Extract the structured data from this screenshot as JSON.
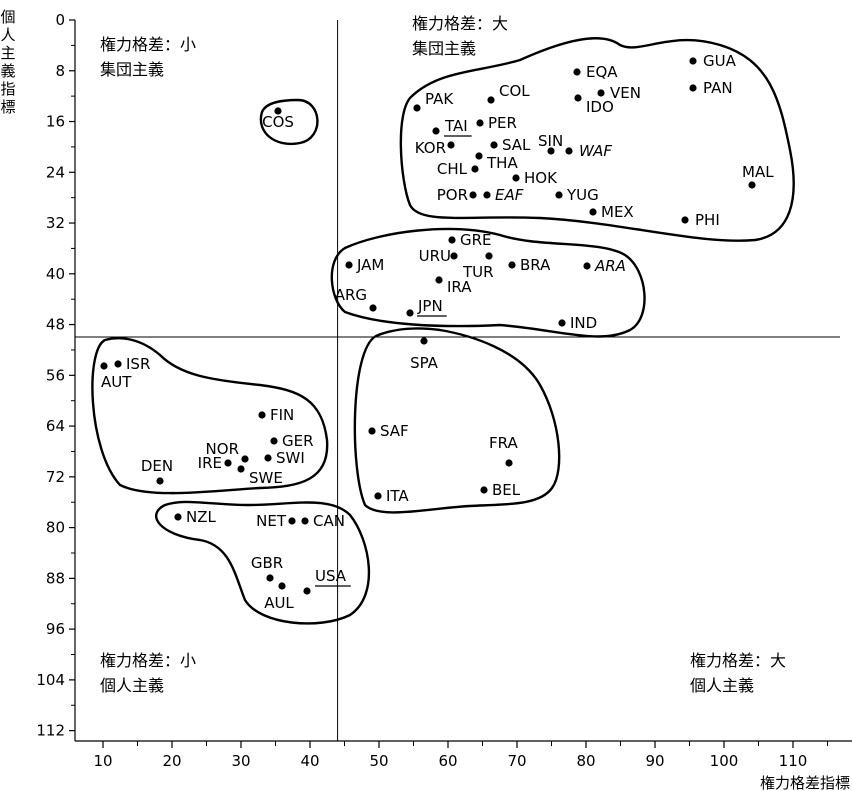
{
  "chart_data": {
    "type": "scatter",
    "title": "",
    "xlabel": "権力格差指標",
    "ylabel": "個人主義指標",
    "xlim": [
      8,
      118
    ],
    "ylim": [
      0,
      112
    ],
    "y_inverted": true,
    "x_ticks": [
      "10",
      "20",
      "30",
      "40",
      "50",
      "60",
      "70",
      "80",
      "90",
      "100",
      "110"
    ],
    "y_ticks": [
      "0",
      "8",
      "16",
      "24",
      "32",
      "40",
      "48",
      "56",
      "64",
      "72",
      "80",
      "88",
      "96",
      "104",
      "112"
    ],
    "reference_lines": {
      "x": 44,
      "y": 50
    },
    "grid": false,
    "quadrant_labels": {
      "top_left": [
        "権力格差：小",
        "集団主義"
      ],
      "top_right": [
        "権力格差：大",
        "集団主義"
      ],
      "bottom_left": [
        "権力格差：小",
        "個人主義"
      ],
      "bottom_right": [
        "権力格差：大",
        "個人主義"
      ]
    },
    "points": [
      {
        "label": "GUA",
        "x": 95,
        "y": 6
      },
      {
        "label": "EQA",
        "x": 78,
        "y": 8
      },
      {
        "label": "PAN",
        "x": 95,
        "y": 11
      },
      {
        "label": "VEN",
        "x": 81,
        "y": 12
      },
      {
        "label": "COL",
        "x": 67,
        "y": 13
      },
      {
        "label": "IDO",
        "x": 78,
        "y": 14
      },
      {
        "label": "PAK",
        "x": 55,
        "y": 14
      },
      {
        "label": "COS",
        "x": 35,
        "y": 15
      },
      {
        "label": "PER",
        "x": 64,
        "y": 16
      },
      {
        "label": "TAI",
        "x": 58,
        "y": 17
      },
      {
        "label": "SAL",
        "x": 66,
        "y": 19
      },
      {
        "label": "KOR",
        "x": 60,
        "y": 18
      },
      {
        "label": "SIN",
        "x": 74,
        "y": 20
      },
      {
        "label": "WAF",
        "x": 77,
        "y": 20
      },
      {
        "label": "THA",
        "x": 64,
        "y": 20
      },
      {
        "label": "CHL",
        "x": 63,
        "y": 23
      },
      {
        "label": "HOK",
        "x": 68,
        "y": 25
      },
      {
        "label": "MAL",
        "x": 104,
        "y": 26
      },
      {
        "label": "POR",
        "x": 63,
        "y": 27
      },
      {
        "label": "EAF",
        "x": 64,
        "y": 27
      },
      {
        "label": "YUG",
        "x": 76,
        "y": 27
      },
      {
        "label": "MEX",
        "x": 81,
        "y": 30
      },
      {
        "label": "PHI",
        "x": 94,
        "y": 32
      },
      {
        "label": "GRE",
        "x": 60,
        "y": 35
      },
      {
        "label": "URU",
        "x": 61,
        "y": 36
      },
      {
        "label": "TUR",
        "x": 66,
        "y": 37
      },
      {
        "label": "JAM",
        "x": 45,
        "y": 39
      },
      {
        "label": "BRA",
        "x": 69,
        "y": 38
      },
      {
        "label": "ARA",
        "x": 80,
        "y": 38
      },
      {
        "label": "IRA",
        "x": 58,
        "y": 41
      },
      {
        "label": "ARG",
        "x": 49,
        "y": 46
      },
      {
        "label": "JPN",
        "x": 54,
        "y": 46
      },
      {
        "label": "IND",
        "x": 77,
        "y": 48
      },
      {
        "label": "SPA",
        "x": 57,
        "y": 51
      },
      {
        "label": "ISR",
        "x": 13,
        "y": 54
      },
      {
        "label": "AUT",
        "x": 11,
        "y": 55
      },
      {
        "label": "FIN",
        "x": 33,
        "y": 63
      },
      {
        "label": "SAF",
        "x": 49,
        "y": 65
      },
      {
        "label": "GER",
        "x": 35,
        "y": 67
      },
      {
        "label": "NOR",
        "x": 31,
        "y": 69
      },
      {
        "label": "SWI",
        "x": 34,
        "y": 68
      },
      {
        "label": "IRE",
        "x": 28,
        "y": 70
      },
      {
        "label": "SWE",
        "x": 31,
        "y": 71
      },
      {
        "label": "FRA",
        "x": 68,
        "y": 71
      },
      {
        "label": "DEN",
        "x": 18,
        "y": 74
      },
      {
        "label": "ITA",
        "x": 50,
        "y": 76
      },
      {
        "label": "BEL",
        "x": 65,
        "y": 75
      },
      {
        "label": "NZL",
        "x": 22,
        "y": 79
      },
      {
        "label": "NET",
        "x": 38,
        "y": 80
      },
      {
        "label": "CAN",
        "x": 39,
        "y": 80
      },
      {
        "label": "GBR",
        "x": 35,
        "y": 89
      },
      {
        "label": "AUL",
        "x": 36,
        "y": 90
      },
      {
        "label": "USA",
        "x": 40,
        "y": 91
      }
    ]
  }
}
